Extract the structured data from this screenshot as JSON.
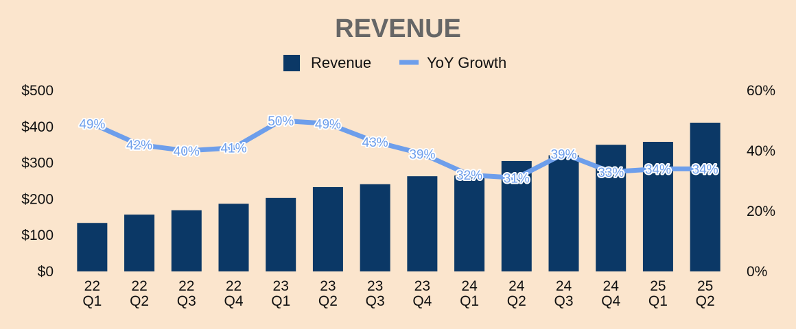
{
  "colors": {
    "background": "#fbe5cd",
    "bar": "#0b3866",
    "line": "#6d9eeb",
    "title": "#666666",
    "text": "#111111"
  },
  "chart_data": {
    "type": "bar",
    "title": "REVENUE",
    "legend_position": "top-center",
    "grid": false,
    "categories": [
      [
        "22",
        "Q1"
      ],
      [
        "22",
        "Q2"
      ],
      [
        "22",
        "Q3"
      ],
      [
        "22",
        "Q4"
      ],
      [
        "23",
        "Q1"
      ],
      [
        "23",
        "Q2"
      ],
      [
        "23",
        "Q3"
      ],
      [
        "23",
        "Q4"
      ],
      [
        "24",
        "Q1"
      ],
      [
        "24",
        "Q2"
      ],
      [
        "24",
        "Q3"
      ],
      [
        "24",
        "Q4"
      ],
      [
        "25",
        "Q1"
      ],
      [
        "25",
        "Q2"
      ]
    ],
    "series": [
      {
        "name": "Revenue",
        "type": "bar",
        "axis": "left",
        "values": [
          134,
          157,
          169,
          187,
          203,
          233,
          241,
          263,
          265,
          305,
          321,
          350,
          358,
          411
        ]
      },
      {
        "name": "YoY Growth",
        "type": "line",
        "axis": "right",
        "values": [
          49,
          42,
          40,
          41,
          50,
          49,
          43,
          39,
          32,
          31,
          39,
          33,
          34,
          34
        ],
        "labels": [
          "49%",
          "42%",
          "40%",
          "41%",
          "50%",
          "49%",
          "43%",
          "39%",
          "32%",
          "31%",
          "39%",
          "33%",
          "34%",
          "34%"
        ]
      }
    ],
    "y_left": {
      "range": [
        0,
        500
      ],
      "ticks": [
        0,
        100,
        200,
        300,
        400,
        500
      ],
      "tick_labels": [
        "$0",
        "$100",
        "$200",
        "$300",
        "$400",
        "$500"
      ]
    },
    "y_right": {
      "range": [
        0,
        60
      ],
      "ticks": [
        0,
        20,
        40,
        60
      ],
      "tick_labels": [
        "0%",
        "20%",
        "40%",
        "60%"
      ]
    }
  }
}
